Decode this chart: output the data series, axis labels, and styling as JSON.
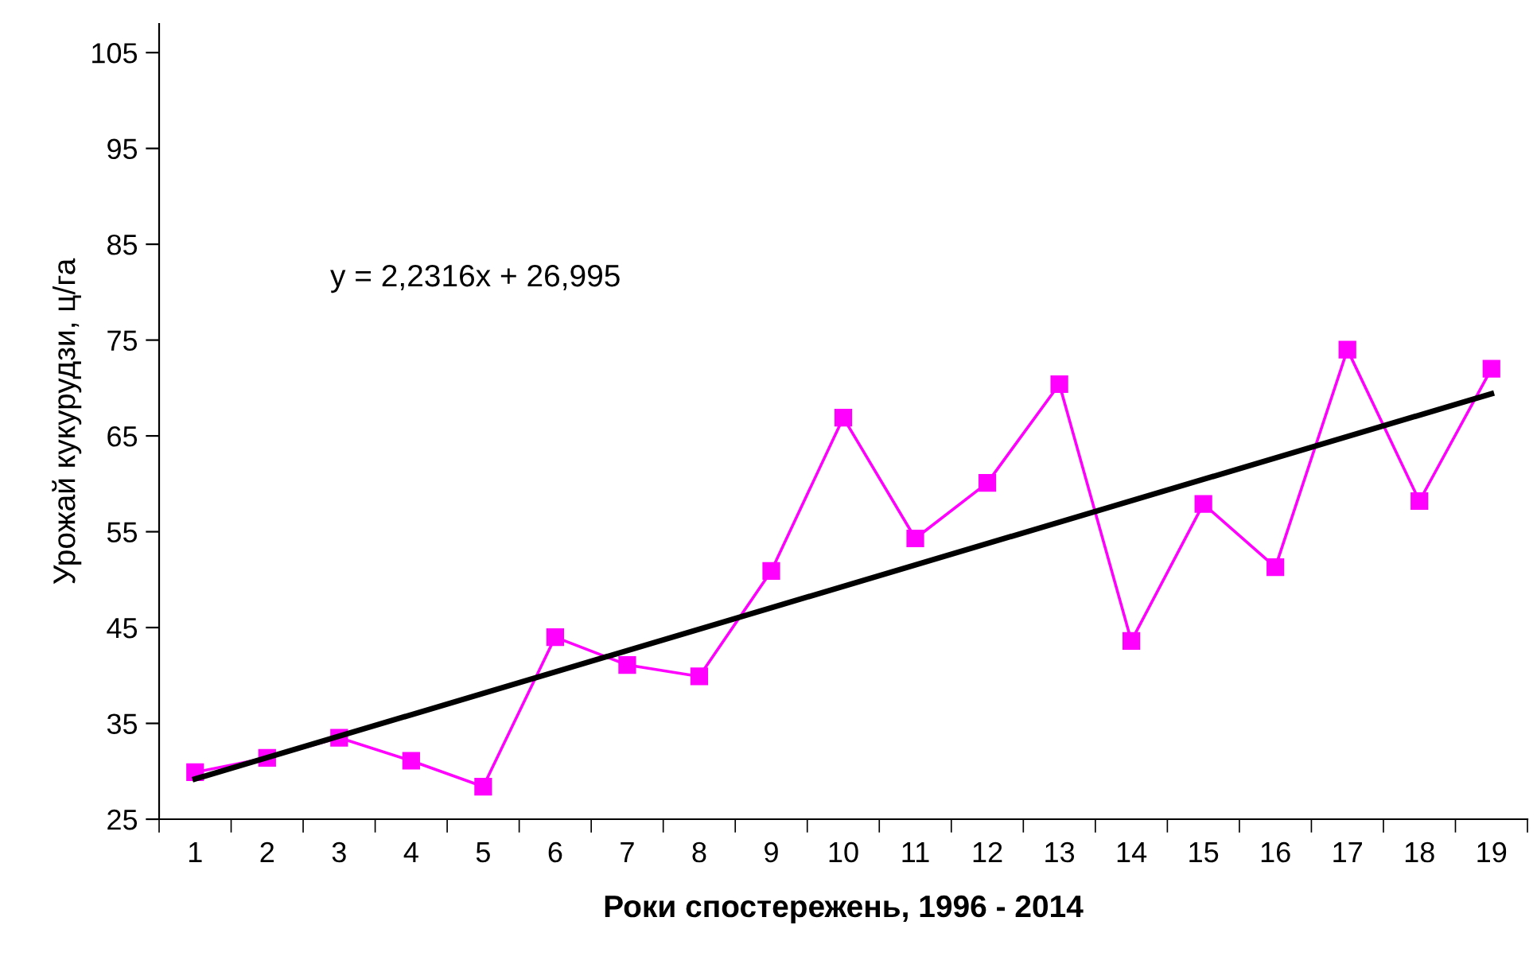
{
  "chart_data": {
    "type": "line",
    "xlabel": "Роки спостережень, 1996 - 2014",
    "ylabel": "Урожай кукурудзи, ц/га",
    "categories": [
      "1",
      "2",
      "3",
      "4",
      "5",
      "6",
      "7",
      "8",
      "9",
      "10",
      "11",
      "12",
      "13",
      "14",
      "15",
      "16",
      "17",
      "18",
      "19"
    ],
    "series": [
      {
        "color": "#ff00ff",
        "marker": "square",
        "values": [
          29.9,
          31.4,
          33.5,
          31.1,
          28.4,
          44.0,
          41.1,
          39.9,
          50.9,
          66.9,
          54.3,
          60.1,
          70.4,
          43.6,
          57.9,
          51.3,
          74.0,
          58.2,
          72.0
        ]
      },
      {
        "type": "line",
        "color": "#000000",
        "marker": "none",
        "x": [
          "1",
          "19"
        ],
        "values": [
          29.2,
          69.4
        ]
      }
    ],
    "annotations": [
      "y = 2,2316x + 26,995"
    ],
    "ylim": [
      25,
      108
    ],
    "yticks": [
      25,
      35,
      45,
      55,
      65,
      75,
      85,
      95,
      105
    ],
    "grid": false,
    "legend": false
  }
}
